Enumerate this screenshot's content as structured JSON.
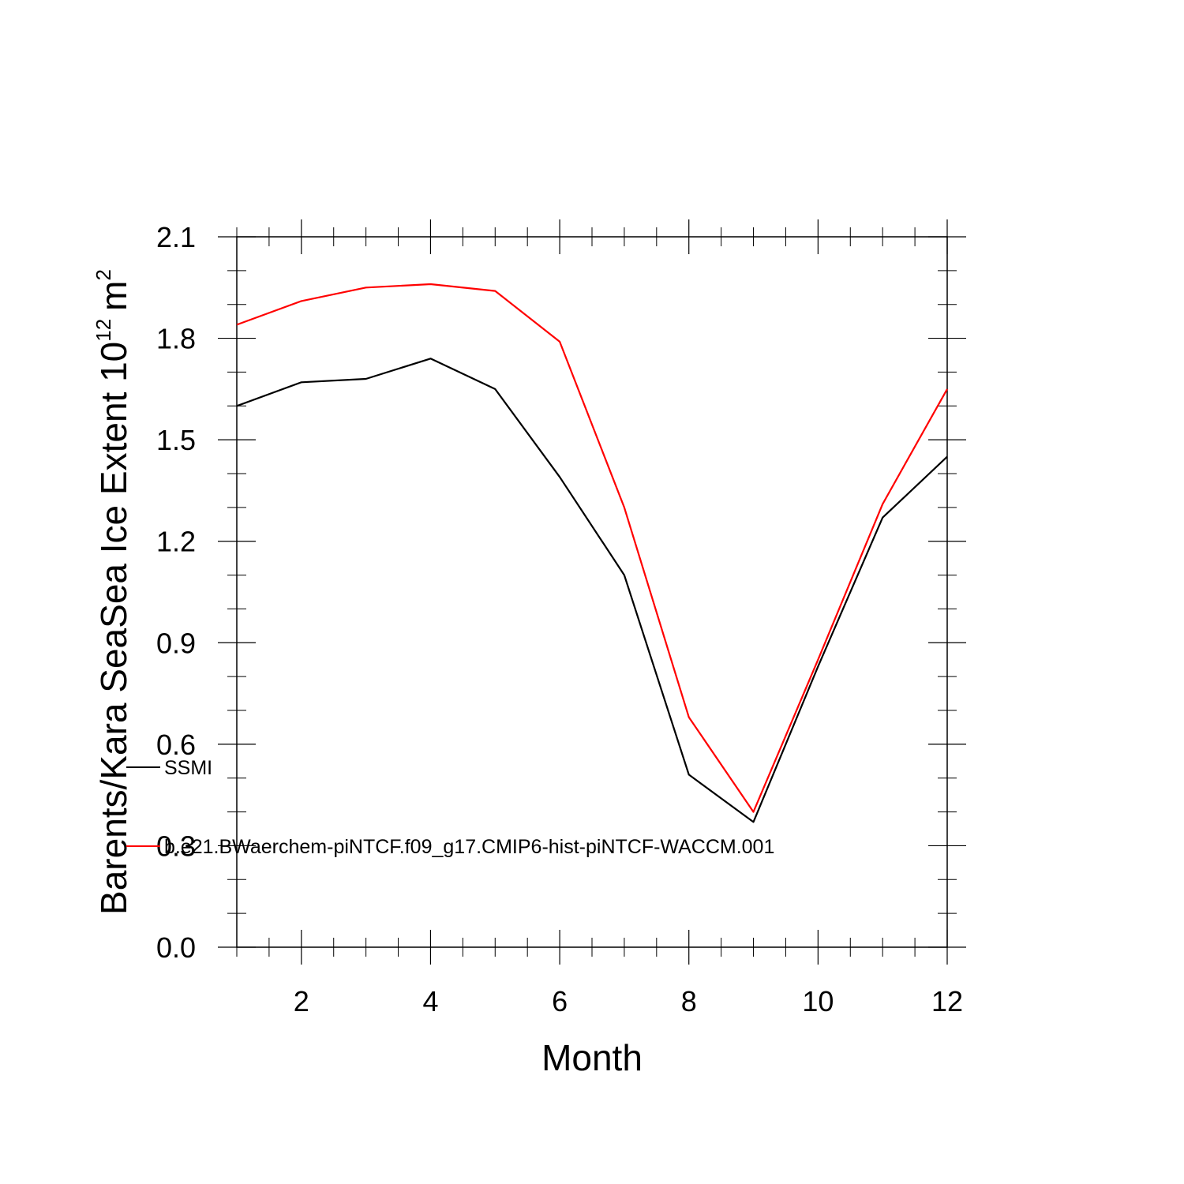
{
  "chart_data": {
    "type": "line",
    "xlabel": "Month",
    "ylabel_main": "Barents/Kara SeaSea Ice Extent 10",
    "ylabel_exp": "12",
    "ylabel_unit": "m",
    "ylabel_unit_exp": "2",
    "xlim": [
      1,
      12
    ],
    "ylim": [
      0.0,
      2.1
    ],
    "x_ticks": [
      2,
      4,
      6,
      8,
      10,
      12
    ],
    "x_tick_labels": [
      "2",
      "4",
      "6",
      "8",
      "10",
      "12"
    ],
    "y_ticks": [
      0.0,
      0.3,
      0.6,
      0.9,
      1.2,
      1.5,
      1.8,
      2.1
    ],
    "y_tick_labels": [
      "0.0",
      "0.3",
      "0.6",
      "0.9",
      "1.2",
      "1.5",
      "1.8",
      "2.1"
    ],
    "x": [
      1,
      2,
      3,
      4,
      5,
      6,
      7,
      8,
      9,
      10,
      11,
      12
    ],
    "series": [
      {
        "name": "SSMI",
        "color": "#000000",
        "values": [
          1.6,
          1.67,
          1.68,
          1.74,
          1.65,
          1.39,
          1.1,
          0.51,
          0.37,
          0.83,
          1.27,
          1.45
        ]
      },
      {
        "name": "b.e21.BWaerchem-piNTCF.f09_g17.CMIP6-hist-piNTCF-WACCM.001",
        "color": "#ff0000",
        "values": [
          1.84,
          1.91,
          1.95,
          1.96,
          1.94,
          1.79,
          1.3,
          0.68,
          0.4,
          0.85,
          1.31,
          1.65
        ]
      }
    ],
    "grid": false,
    "legend_position": "inside-left"
  }
}
